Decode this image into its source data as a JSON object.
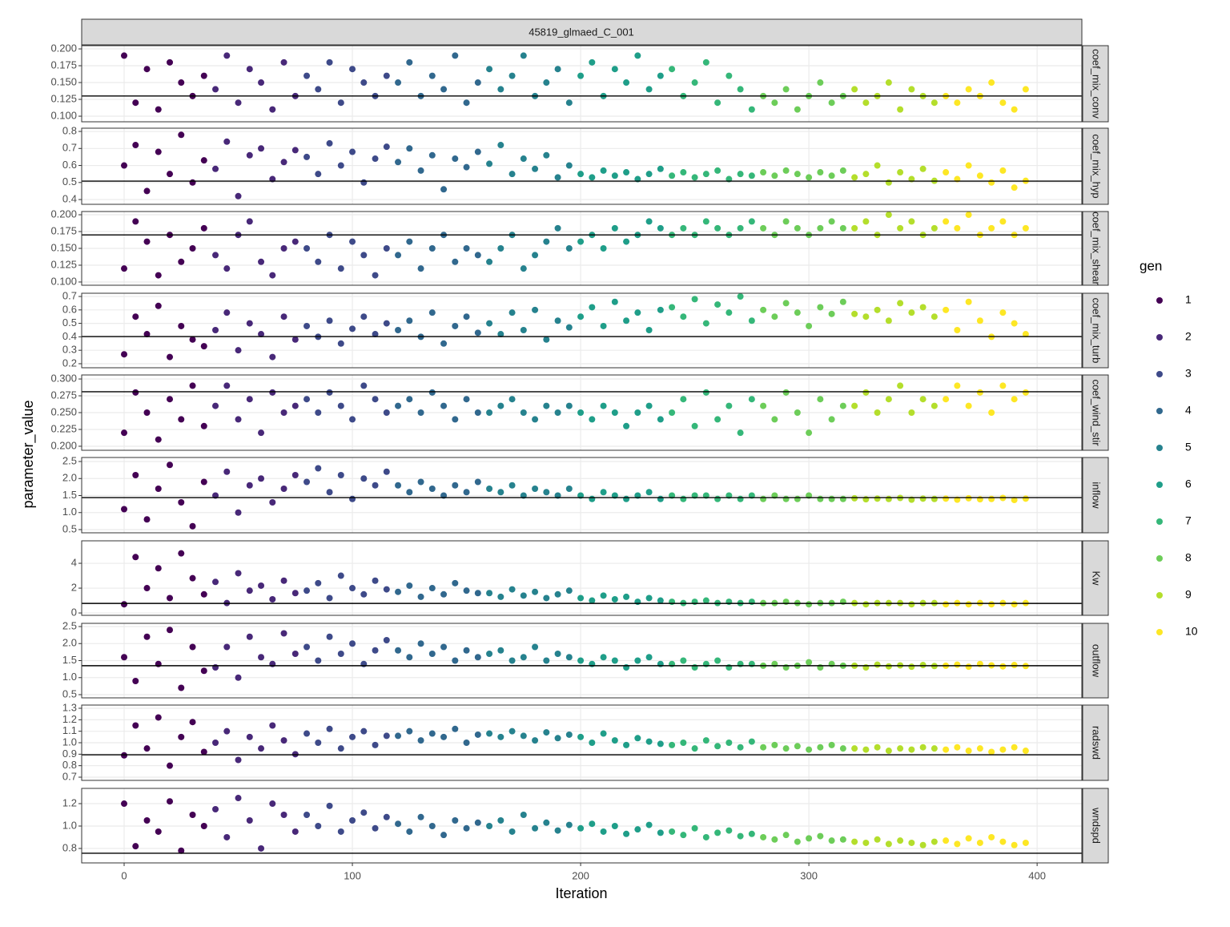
{
  "chart_data": {
    "type": "scatter",
    "title": "45819_glmaed_C_001",
    "xlabel": "Iteration",
    "ylabel": "parameter_value",
    "legend_title": "gen",
    "xlim": [
      -18.6,
      419.6
    ],
    "xticks": [
      0,
      100,
      200,
      300,
      400
    ],
    "grid": true,
    "series": [
      {
        "name": "1",
        "color": "#440154"
      },
      {
        "name": "2",
        "color": "#482878"
      },
      {
        "name": "3",
        "color": "#3E4A89"
      },
      {
        "name": "4",
        "color": "#31688E"
      },
      {
        "name": "5",
        "color": "#26828E"
      },
      {
        "name": "6",
        "color": "#1F9E89"
      },
      {
        "name": "7",
        "color": "#35B779"
      },
      {
        "name": "8",
        "color": "#6DCD59"
      },
      {
        "name": "9",
        "color": "#B4DE2C"
      },
      {
        "name": "10",
        "color": "#FDE725"
      }
    ],
    "x": [
      0,
      5,
      10,
      15,
      20,
      25,
      30,
      35,
      40,
      45,
      50,
      55,
      60,
      65,
      70,
      75,
      80,
      85,
      90,
      95,
      100,
      105,
      110,
      115,
      120,
      125,
      130,
      135,
      140,
      145,
      150,
      155,
      160,
      165,
      170,
      175,
      180,
      185,
      190,
      195,
      200,
      205,
      210,
      215,
      220,
      225,
      230,
      235,
      240,
      245,
      250,
      255,
      260,
      265,
      270,
      275,
      280,
      285,
      290,
      295,
      300,
      305,
      310,
      315,
      320,
      325,
      330,
      335,
      340,
      345,
      350,
      355,
      360,
      365,
      370,
      375,
      380,
      385,
      390,
      395
    ],
    "gen": [
      1,
      1,
      1,
      1,
      1,
      1,
      1,
      1,
      2,
      2,
      2,
      2,
      2,
      2,
      2,
      2,
      3,
      3,
      3,
      3,
      3,
      3,
      3,
      3,
      4,
      4,
      4,
      4,
      4,
      4,
      4,
      4,
      5,
      5,
      5,
      5,
      5,
      5,
      5,
      5,
      6,
      6,
      6,
      6,
      6,
      6,
      6,
      6,
      7,
      7,
      7,
      7,
      7,
      7,
      7,
      7,
      8,
      8,
      8,
      8,
      8,
      8,
      8,
      8,
      9,
      9,
      9,
      9,
      9,
      9,
      9,
      9,
      10,
      10,
      10,
      10,
      10,
      10,
      10,
      10
    ],
    "panels": [
      {
        "label": "coef_mix_conv",
        "ylim": [
          0.0917,
          0.2048
        ],
        "hline": 0.13,
        "yticks": [
          {
            "value": 0.1,
            "label": "0.100"
          },
          {
            "value": 0.125,
            "label": "0.125"
          },
          {
            "value": 0.15,
            "label": "0.150"
          },
          {
            "value": 0.175,
            "label": "0.175"
          },
          {
            "value": 0.2,
            "label": "0.200"
          }
        ],
        "values": [
          0.19,
          0.12,
          0.17,
          0.11,
          0.18,
          0.15,
          0.13,
          0.16,
          0.14,
          0.19,
          0.12,
          0.17,
          0.15,
          0.11,
          0.18,
          0.13,
          0.16,
          0.14,
          0.18,
          0.12,
          0.17,
          0.15,
          0.13,
          0.16,
          0.15,
          0.18,
          0.13,
          0.16,
          0.14,
          0.19,
          0.12,
          0.15,
          0.17,
          0.14,
          0.16,
          0.19,
          0.13,
          0.15,
          0.17,
          0.12,
          0.16,
          0.18,
          0.13,
          0.17,
          0.15,
          0.19,
          0.14,
          0.16,
          0.17,
          0.13,
          0.15,
          0.18,
          0.12,
          0.16,
          0.14,
          0.11,
          0.13,
          0.12,
          0.14,
          0.11,
          0.13,
          0.15,
          0.12,
          0.13,
          0.14,
          0.12,
          0.13,
          0.15,
          0.11,
          0.14,
          0.13,
          0.12,
          0.13,
          0.12,
          0.14,
          0.13,
          0.15,
          0.12,
          0.11,
          0.14
        ]
      },
      {
        "label": "coef_mix_hyp",
        "ylim": [
          0.372,
          0.819
        ],
        "hline": 0.508,
        "yticks": [
          0.4,
          0.5,
          0.6,
          0.7,
          0.8
        ],
        "values": [
          0.6,
          0.72,
          0.45,
          0.68,
          0.55,
          0.78,
          0.5,
          0.63,
          0.58,
          0.74,
          0.42,
          0.66,
          0.7,
          0.52,
          0.62,
          0.69,
          0.65,
          0.55,
          0.73,
          0.6,
          0.68,
          0.5,
          0.64,
          0.71,
          0.62,
          0.7,
          0.57,
          0.66,
          0.46,
          0.64,
          0.59,
          0.68,
          0.61,
          0.72,
          0.55,
          0.64,
          0.58,
          0.66,
          0.53,
          0.6,
          0.55,
          0.53,
          0.57,
          0.54,
          0.56,
          0.52,
          0.55,
          0.58,
          0.54,
          0.56,
          0.53,
          0.55,
          0.57,
          0.52,
          0.55,
          0.54,
          0.56,
          0.54,
          0.57,
          0.55,
          0.53,
          0.56,
          0.54,
          0.57,
          0.53,
          0.55,
          0.6,
          0.5,
          0.56,
          0.52,
          0.58,
          0.51,
          0.56,
          0.52,
          0.6,
          0.54,
          0.5,
          0.57,
          0.47,
          0.51
        ]
      },
      {
        "label": "coef_mix_shear",
        "ylim": [
          0.0952,
          0.2048
        ],
        "hline": 0.17,
        "yticks": [
          {
            "value": 0.1,
            "label": "0.100"
          },
          {
            "value": 0.125,
            "label": "0.125"
          },
          {
            "value": 0.15,
            "label": "0.150"
          },
          {
            "value": 0.175,
            "label": "0.175"
          },
          {
            "value": 0.2,
            "label": "0.200"
          }
        ],
        "values": [
          0.12,
          0.19,
          0.16,
          0.11,
          0.17,
          0.13,
          0.15,
          0.18,
          0.14,
          0.12,
          0.17,
          0.19,
          0.13,
          0.11,
          0.15,
          0.16,
          0.15,
          0.13,
          0.17,
          0.12,
          0.16,
          0.14,
          0.11,
          0.15,
          0.14,
          0.16,
          0.12,
          0.15,
          0.17,
          0.13,
          0.15,
          0.14,
          0.13,
          0.15,
          0.17,
          0.12,
          0.14,
          0.16,
          0.18,
          0.15,
          0.16,
          0.17,
          0.15,
          0.18,
          0.16,
          0.17,
          0.19,
          0.18,
          0.17,
          0.18,
          0.17,
          0.19,
          0.18,
          0.17,
          0.18,
          0.19,
          0.18,
          0.17,
          0.19,
          0.18,
          0.17,
          0.18,
          0.19,
          0.18,
          0.18,
          0.19,
          0.17,
          0.2,
          0.18,
          0.19,
          0.17,
          0.18,
          0.19,
          0.18,
          0.2,
          0.17,
          0.18,
          0.19,
          0.17,
          0.18
        ]
      },
      {
        "label": "coef_mix_turb",
        "ylim": [
          0.17,
          0.724
        ],
        "hline": 0.402,
        "yticks": [
          0.2,
          0.3,
          0.4,
          0.5,
          0.6,
          0.7
        ],
        "values": [
          0.27,
          0.55,
          0.42,
          0.63,
          0.25,
          0.48,
          0.38,
          0.33,
          0.45,
          0.58,
          0.3,
          0.5,
          0.42,
          0.25,
          0.55,
          0.38,
          0.48,
          0.4,
          0.52,
          0.35,
          0.46,
          0.55,
          0.42,
          0.5,
          0.45,
          0.52,
          0.4,
          0.58,
          0.35,
          0.48,
          0.55,
          0.43,
          0.5,
          0.42,
          0.58,
          0.45,
          0.6,
          0.38,
          0.52,
          0.47,
          0.55,
          0.62,
          0.48,
          0.66,
          0.52,
          0.58,
          0.45,
          0.6,
          0.62,
          0.55,
          0.68,
          0.5,
          0.64,
          0.58,
          0.7,
          0.52,
          0.6,
          0.55,
          0.65,
          0.58,
          0.48,
          0.62,
          0.57,
          0.66,
          0.57,
          0.55,
          0.6,
          0.52,
          0.65,
          0.58,
          0.62,
          0.55,
          0.6,
          0.45,
          0.66,
          0.52,
          0.4,
          0.58,
          0.5,
          0.42
        ]
      },
      {
        "label": "coef_wind_stir",
        "ylim": [
          0.194,
          0.306
        ],
        "hline": 0.281,
        "yticks": [
          {
            "value": 0.2,
            "label": "0.200"
          },
          {
            "value": 0.225,
            "label": "0.225"
          },
          {
            "value": 0.25,
            "label": "0.250"
          },
          {
            "value": 0.275,
            "label": "0.275"
          },
          {
            "value": 0.3,
            "label": "0.300"
          }
        ],
        "values": [
          0.22,
          0.28,
          0.25,
          0.21,
          0.27,
          0.24,
          0.29,
          0.23,
          0.26,
          0.29,
          0.24,
          0.27,
          0.22,
          0.28,
          0.25,
          0.26,
          0.27,
          0.25,
          0.28,
          0.26,
          0.24,
          0.29,
          0.27,
          0.25,
          0.26,
          0.27,
          0.25,
          0.28,
          0.26,
          0.24,
          0.27,
          0.25,
          0.25,
          0.26,
          0.27,
          0.25,
          0.24,
          0.26,
          0.25,
          0.26,
          0.25,
          0.24,
          0.26,
          0.25,
          0.23,
          0.25,
          0.26,
          0.24,
          0.25,
          0.27,
          0.23,
          0.28,
          0.24,
          0.26,
          0.22,
          0.27,
          0.26,
          0.24,
          0.28,
          0.25,
          0.22,
          0.27,
          0.24,
          0.26,
          0.26,
          0.28,
          0.25,
          0.27,
          0.29,
          0.25,
          0.27,
          0.26,
          0.27,
          0.29,
          0.26,
          0.28,
          0.25,
          0.29,
          0.27,
          0.28
        ]
      },
      {
        "label": "inflow",
        "ylim": [
          0.406,
          2.618
        ],
        "hline": 1.44,
        "yticks": [
          0.5,
          {
            "value": 1,
            "label": "1.0"
          },
          1.5,
          {
            "value": 2,
            "label": "2.0"
          },
          2.5
        ],
        "values": [
          1.1,
          2.1,
          0.8,
          1.7,
          2.4,
          1.3,
          0.6,
          1.9,
          1.5,
          2.2,
          1.0,
          1.8,
          2.0,
          1.3,
          1.7,
          2.1,
          1.9,
          2.3,
          1.6,
          2.1,
          1.4,
          2.0,
          1.8,
          2.2,
          1.8,
          1.6,
          1.9,
          1.7,
          1.5,
          1.8,
          1.6,
          1.9,
          1.7,
          1.6,
          1.8,
          1.5,
          1.7,
          1.6,
          1.5,
          1.7,
          1.5,
          1.4,
          1.6,
          1.5,
          1.4,
          1.5,
          1.6,
          1.4,
          1.5,
          1.4,
          1.5,
          1.5,
          1.4,
          1.5,
          1.4,
          1.5,
          1.4,
          1.5,
          1.4,
          1.4,
          1.5,
          1.4,
          1.4,
          1.4,
          1.42,
          1.39,
          1.41,
          1.4,
          1.43,
          1.38,
          1.41,
          1.4,
          1.41,
          1.38,
          1.42,
          1.39,
          1.4,
          1.43,
          1.37,
          1.41
        ]
      },
      {
        "label": "Kw",
        "ylim": [
          -0.19,
          5.81
        ],
        "hline": 0.77,
        "yticks": [
          0,
          2,
          4
        ],
        "values": [
          0.7,
          4.5,
          2.0,
          3.6,
          1.2,
          4.8,
          2.8,
          1.5,
          2.5,
          0.8,
          3.2,
          1.8,
          2.2,
          1.1,
          2.6,
          1.6,
          1.8,
          2.4,
          1.2,
          3.0,
          2.0,
          1.5,
          2.6,
          1.9,
          1.7,
          2.2,
          1.3,
          2.0,
          1.5,
          2.4,
          1.8,
          1.6,
          1.6,
          1.3,
          1.9,
          1.4,
          1.7,
          1.2,
          1.5,
          1.8,
          1.2,
          1.0,
          1.4,
          1.1,
          1.3,
          0.9,
          1.2,
          1.0,
          0.9,
          0.8,
          0.9,
          1.0,
          0.8,
          0.9,
          0.8,
          0.9,
          0.8,
          0.8,
          0.9,
          0.8,
          0.7,
          0.8,
          0.8,
          0.9,
          0.8,
          0.7,
          0.8,
          0.8,
          0.8,
          0.7,
          0.8,
          0.8,
          0.7,
          0.8,
          0.7,
          0.8,
          0.7,
          0.8,
          0.7,
          0.8
        ]
      },
      {
        "label": "outflow",
        "ylim": [
          0.406,
          2.594
        ],
        "hline": 1.35,
        "yticks": [
          0.5,
          {
            "value": 1,
            "label": "1.0"
          },
          1.5,
          {
            "value": 2,
            "label": "2.0"
          },
          2.5
        ],
        "values": [
          1.6,
          0.9,
          2.2,
          1.4,
          2.4,
          0.7,
          1.9,
          1.2,
          1.3,
          1.9,
          1.0,
          2.2,
          1.6,
          1.4,
          2.3,
          1.7,
          1.9,
          1.5,
          2.2,
          1.7,
          2.0,
          1.4,
          1.8,
          2.1,
          1.8,
          1.6,
          2.0,
          1.7,
          1.9,
          1.5,
          1.8,
          1.6,
          1.7,
          1.8,
          1.5,
          1.6,
          1.9,
          1.5,
          1.7,
          1.6,
          1.5,
          1.4,
          1.6,
          1.5,
          1.3,
          1.5,
          1.6,
          1.4,
          1.4,
          1.5,
          1.3,
          1.4,
          1.5,
          1.3,
          1.4,
          1.4,
          1.35,
          1.4,
          1.3,
          1.35,
          1.45,
          1.3,
          1.4,
          1.35,
          1.35,
          1.3,
          1.38,
          1.33,
          1.36,
          1.32,
          1.37,
          1.34,
          1.35,
          1.38,
          1.32,
          1.4,
          1.36,
          1.33,
          1.37,
          1.34
        ]
      },
      {
        "label": "radswd",
        "ylim": [
          0.672,
          1.328
        ],
        "hline": 0.895,
        "yticks": [
          0.7,
          0.8,
          0.9,
          {
            "value": 1,
            "label": "1.0"
          },
          1.1,
          1.2,
          1.3
        ],
        "values": [
          0.89,
          1.15,
          0.95,
          1.22,
          0.8,
          1.05,
          1.18,
          0.92,
          1.0,
          1.1,
          0.85,
          1.05,
          0.95,
          1.15,
          1.02,
          0.9,
          1.08,
          1.0,
          1.12,
          0.95,
          1.05,
          1.1,
          0.98,
          1.06,
          1.06,
          1.1,
          1.02,
          1.08,
          1.05,
          1.12,
          1.0,
          1.07,
          1.08,
          1.05,
          1.1,
          1.06,
          1.02,
          1.09,
          1.04,
          1.07,
          1.05,
          1.0,
          1.08,
          1.02,
          0.98,
          1.04,
          1.01,
          0.99,
          0.98,
          1.0,
          0.95,
          1.02,
          0.97,
          1.0,
          0.96,
          1.01,
          0.96,
          0.98,
          0.95,
          0.97,
          0.94,
          0.96,
          0.98,
          0.95,
          0.95,
          0.94,
          0.96,
          0.93,
          0.95,
          0.94,
          0.96,
          0.95,
          0.94,
          0.96,
          0.93,
          0.95,
          0.92,
          0.94,
          0.96,
          0.93
        ]
      },
      {
        "label": "wndspd",
        "ylim": [
          0.671,
          1.336
        ],
        "hline": 0.757,
        "yticks": [
          0.8,
          {
            "value": 1,
            "label": "1.0"
          },
          1.2
        ],
        "values": [
          1.2,
          0.82,
          1.05,
          0.95,
          1.22,
          0.78,
          1.1,
          1.0,
          1.15,
          0.9,
          1.25,
          1.05,
          0.8,
          1.2,
          1.1,
          0.95,
          1.1,
          1.0,
          1.18,
          0.95,
          1.05,
          1.12,
          0.98,
          1.08,
          1.02,
          0.95,
          1.08,
          1.0,
          0.92,
          1.05,
          0.98,
          1.03,
          1.0,
          1.05,
          0.95,
          1.1,
          0.98,
          1.03,
          0.96,
          1.01,
          0.98,
          1.02,
          0.95,
          1.0,
          0.93,
          0.97,
          1.01,
          0.94,
          0.95,
          0.92,
          0.98,
          0.9,
          0.94,
          0.96,
          0.91,
          0.93,
          0.9,
          0.88,
          0.92,
          0.86,
          0.89,
          0.91,
          0.87,
          0.88,
          0.86,
          0.85,
          0.88,
          0.84,
          0.87,
          0.85,
          0.83,
          0.86,
          0.87,
          0.84,
          0.89,
          0.85,
          0.9,
          0.86,
          0.83,
          0.85
        ]
      }
    ]
  }
}
